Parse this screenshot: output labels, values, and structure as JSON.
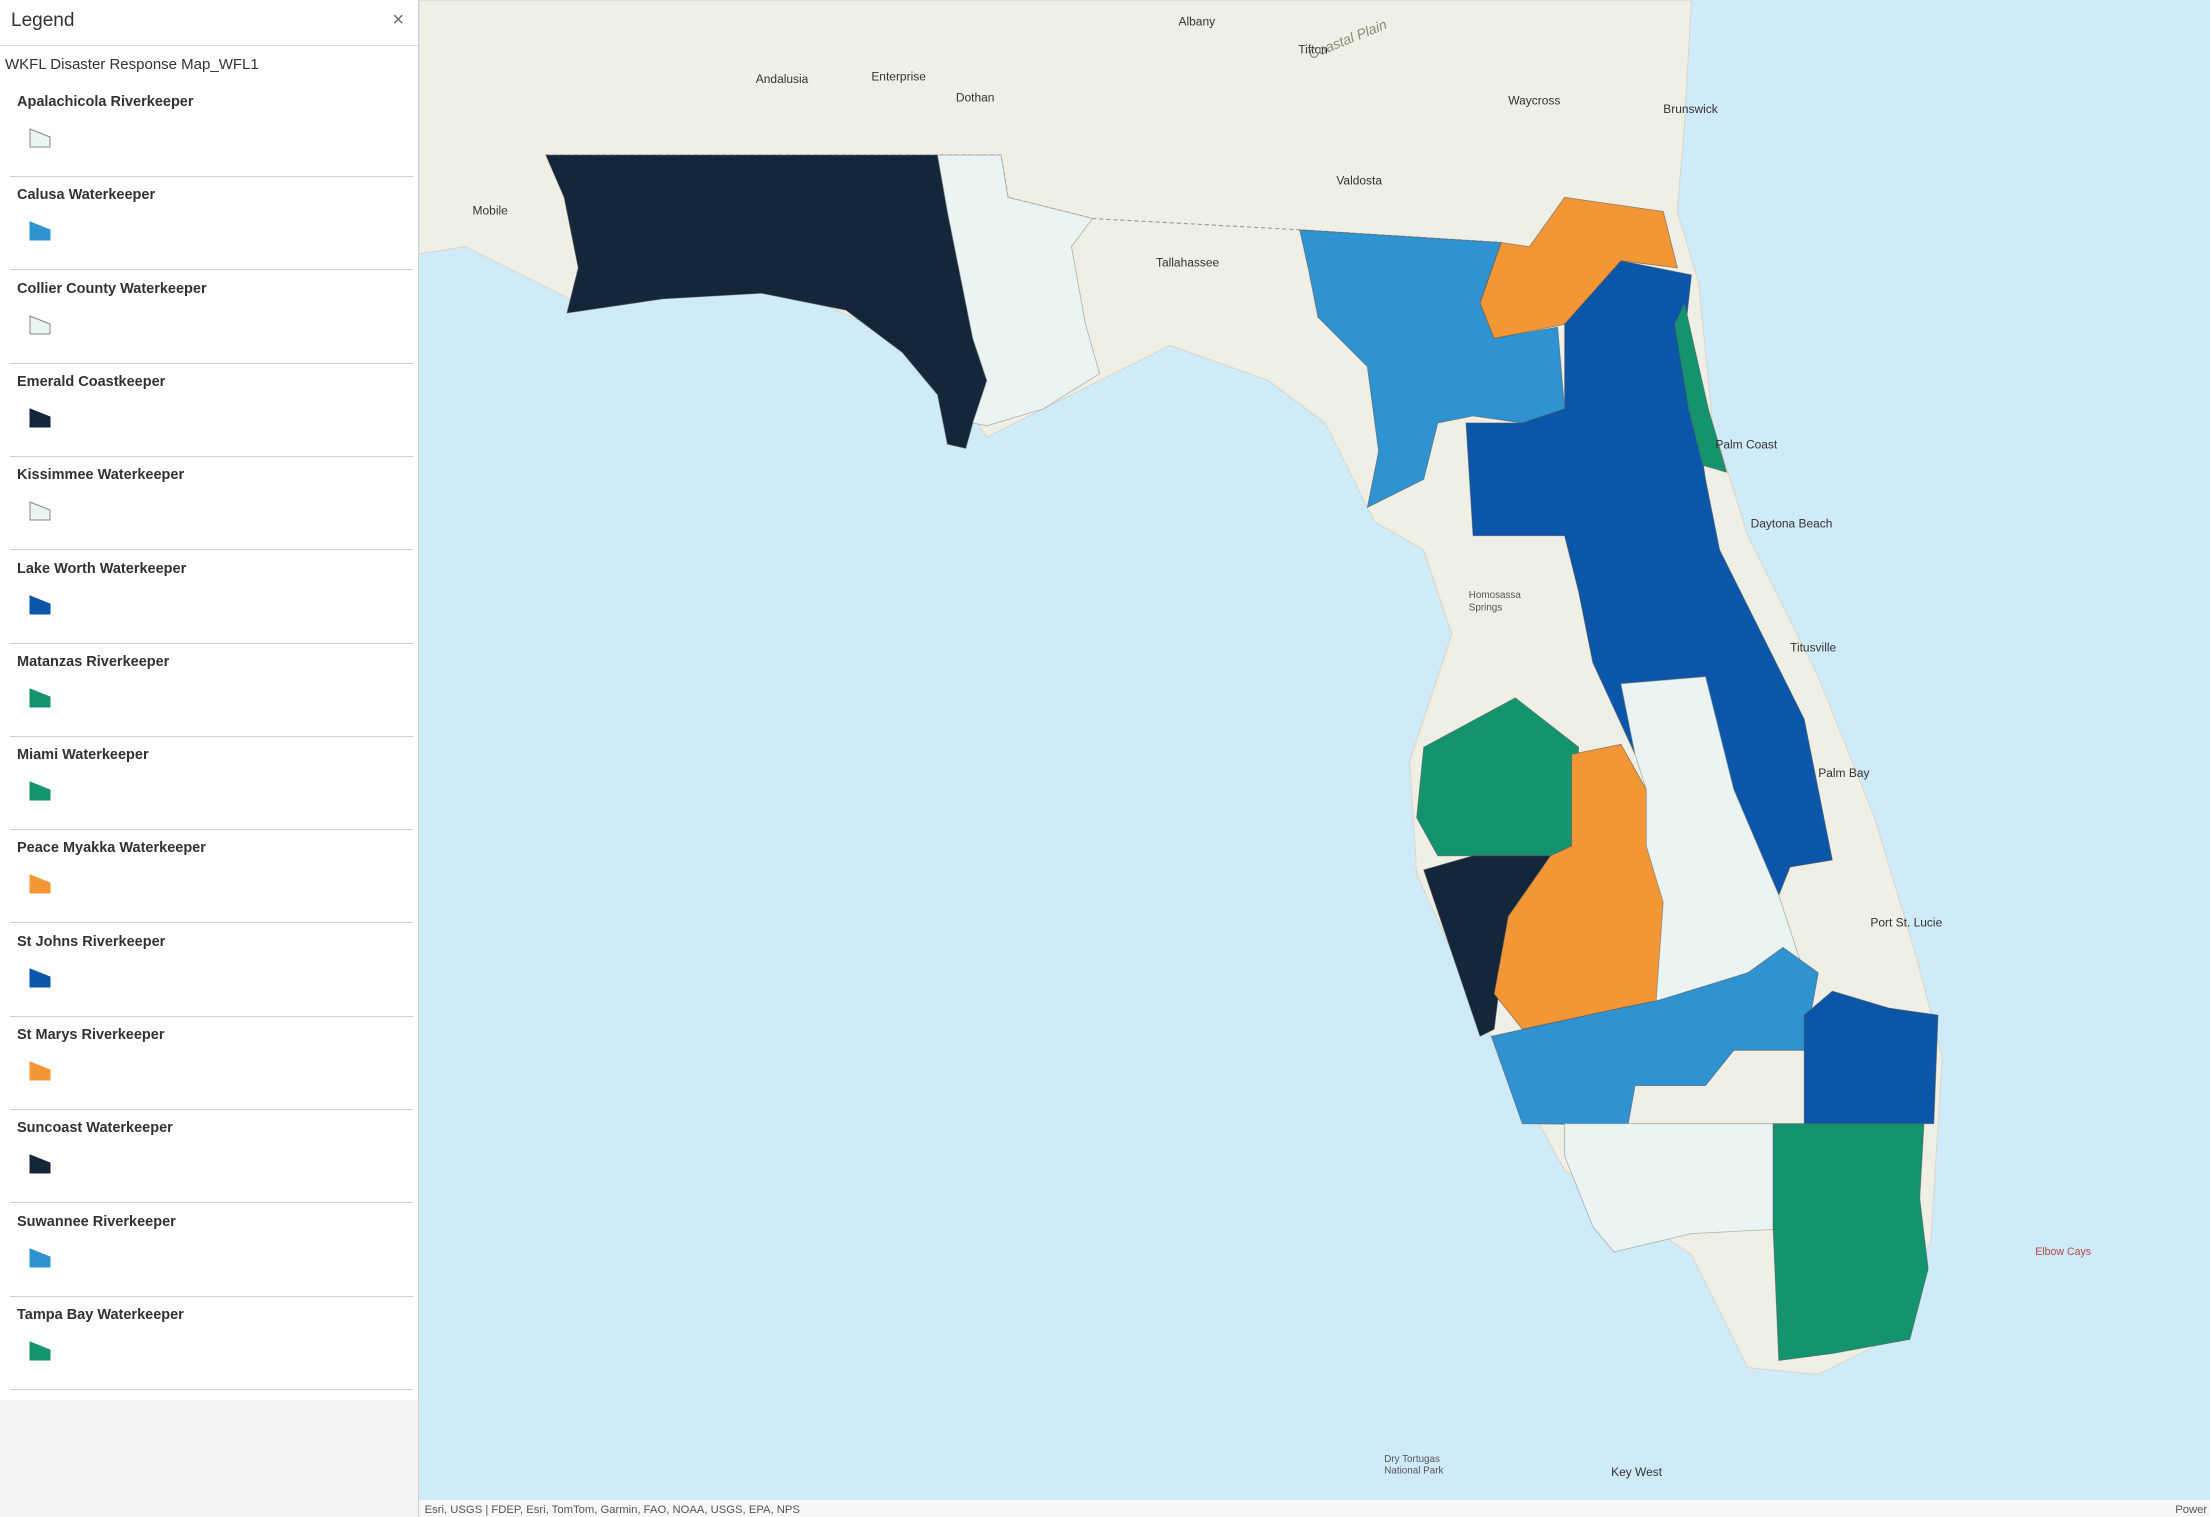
{
  "legend": {
    "title": "Legend",
    "close": "×",
    "layer": "WKFL Disaster Response Map_WFL1",
    "items": [
      {
        "name": "Apalachicola Riverkeeper",
        "color": "#eaf4f2"
      },
      {
        "name": "Calusa Waterkeeper",
        "color": "#2f93d1"
      },
      {
        "name": "Collier County Waterkeeper",
        "color": "#eaf4f2"
      },
      {
        "name": "Emerald Coastkeeper",
        "color": "#13263a"
      },
      {
        "name": "Kissimmee Waterkeeper",
        "color": "#eaf4f2"
      },
      {
        "name": "Lake Worth Waterkeeper",
        "color": "#0b56a8"
      },
      {
        "name": "Matanzas Riverkeeper",
        "color": "#13946f"
      },
      {
        "name": "Miami Waterkeeper",
        "color": "#13946f"
      },
      {
        "name": "Peace Myakka Waterkeeper",
        "color": "#f39635"
      },
      {
        "name": "St Johns Riverkeeper",
        "color": "#0b56a8"
      },
      {
        "name": "St Marys Riverkeeper",
        "color": "#f39635"
      },
      {
        "name": "Suncoast Waterkeeper",
        "color": "#13263a"
      },
      {
        "name": "Suwannee Riverkeeper",
        "color": "#2f93d1"
      },
      {
        "name": "Tampa Bay Waterkeeper",
        "color": "#13946f"
      }
    ]
  },
  "map": {
    "labels": [
      "Mobile",
      "Andalusia",
      "Enterprise",
      "Dothan",
      "Albany",
      "Tifton",
      "Coastal Plain",
      "Valdosta",
      "Waycross",
      "Brunswick",
      "Tallahassee",
      "Palm Coast",
      "Daytona Beach",
      "Homosassa",
      "Springs",
      "Titusville",
      "Palm Bay",
      "Port St. Lucie",
      "Elbow Cays",
      "Dry Tortugas",
      "National Park",
      "Key West"
    ],
    "attribution": "Esri, USGS | FDEP, Esri, TomTom, Garmin, FAO, NOAA, USGS, EPA, NPS",
    "powered": "Power"
  }
}
